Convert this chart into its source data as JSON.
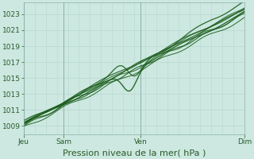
{
  "title": "Pression niveau de la mer( hPa )",
  "background_color": "#cce8e0",
  "plot_bg_color": "#cce8e0",
  "grid_color_h": "#b8d8d0",
  "grid_color_v": "#a0c0b8",
  "line_color": "#1a5c1a",
  "ylim": [
    1008.0,
    1024.5
  ],
  "yticks": [
    1009,
    1011,
    1013,
    1015,
    1017,
    1019,
    1021,
    1023
  ],
  "xtick_labels": [
    "Jeu",
    "Sam",
    "Ven",
    "Dim"
  ],
  "xtick_positions": [
    0.0,
    0.18,
    0.53,
    1.0
  ],
  "title_fontsize": 8,
  "tick_fontsize": 6.5
}
